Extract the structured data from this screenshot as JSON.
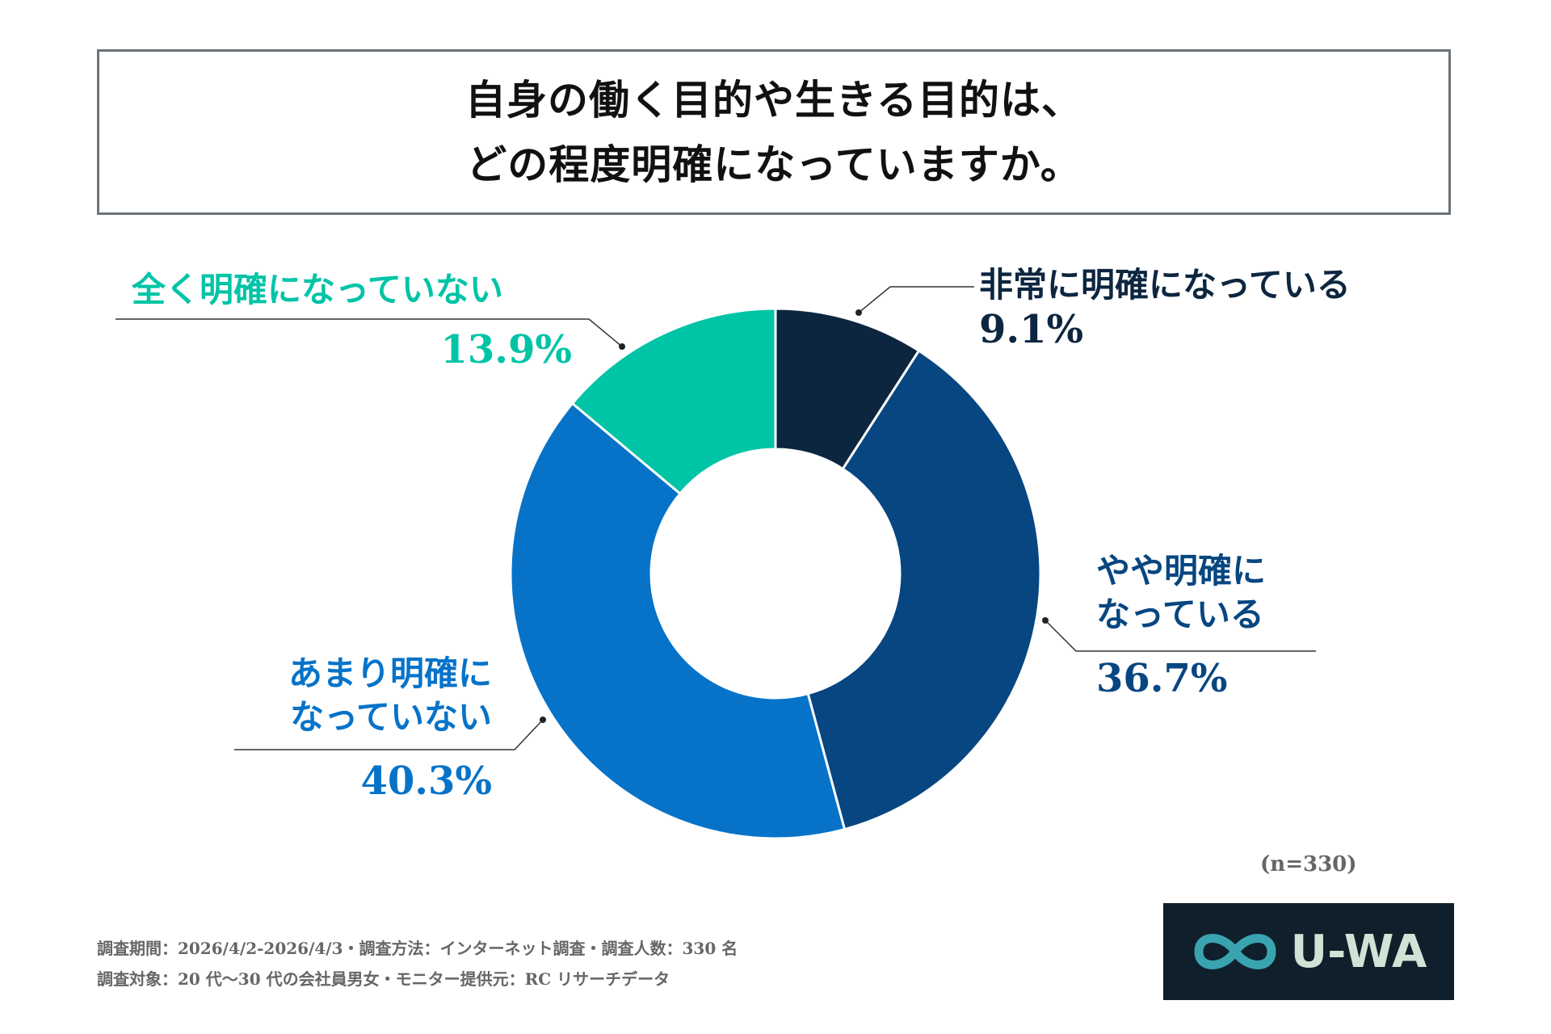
{
  "title": {
    "line1": "自身の働く目的や生きる目的は、",
    "line2": "どの程度明確になっていますか。"
  },
  "chart_data": {
    "type": "pie",
    "subtype": "donut",
    "categories": [
      "非常に明確になっている",
      "やや明確になっている",
      "あまり明確になっていない",
      "全く明確になっていない"
    ],
    "values": [
      9.1,
      36.7,
      40.3,
      13.9
    ],
    "unit": "%",
    "colors": [
      "#0d2640",
      "#074680",
      "#0673c9",
      "#00c4a6"
    ],
    "labels": {
      "very_clear": {
        "lines": [
          "非常に明確になっている"
        ],
        "pct": "9.1%"
      },
      "somewhat_clear": {
        "lines": [
          "やや明確に",
          "なっている"
        ],
        "pct": "36.7%"
      },
      "not_very_clear": {
        "lines": [
          "あまり明確に",
          "なっていない"
        ],
        "pct": "40.3%"
      },
      "not_at_all": {
        "lines": [
          "全く明確になっていない"
        ],
        "pct": "13.9%"
      }
    },
    "legend": "none"
  },
  "sample": "(n=330)",
  "footer": {
    "line1": "調査期間：2026/4/2-2026/4/3・調査方法：インターネット調査・調査人数：330 名",
    "line2": "調査対象：20 代〜30 代の会社員男女・モニター提供元：RC リサーチデータ"
  },
  "logo": {
    "text": "U-WA",
    "icon": "infinity-icon",
    "bg": "#0f1f2b"
  }
}
